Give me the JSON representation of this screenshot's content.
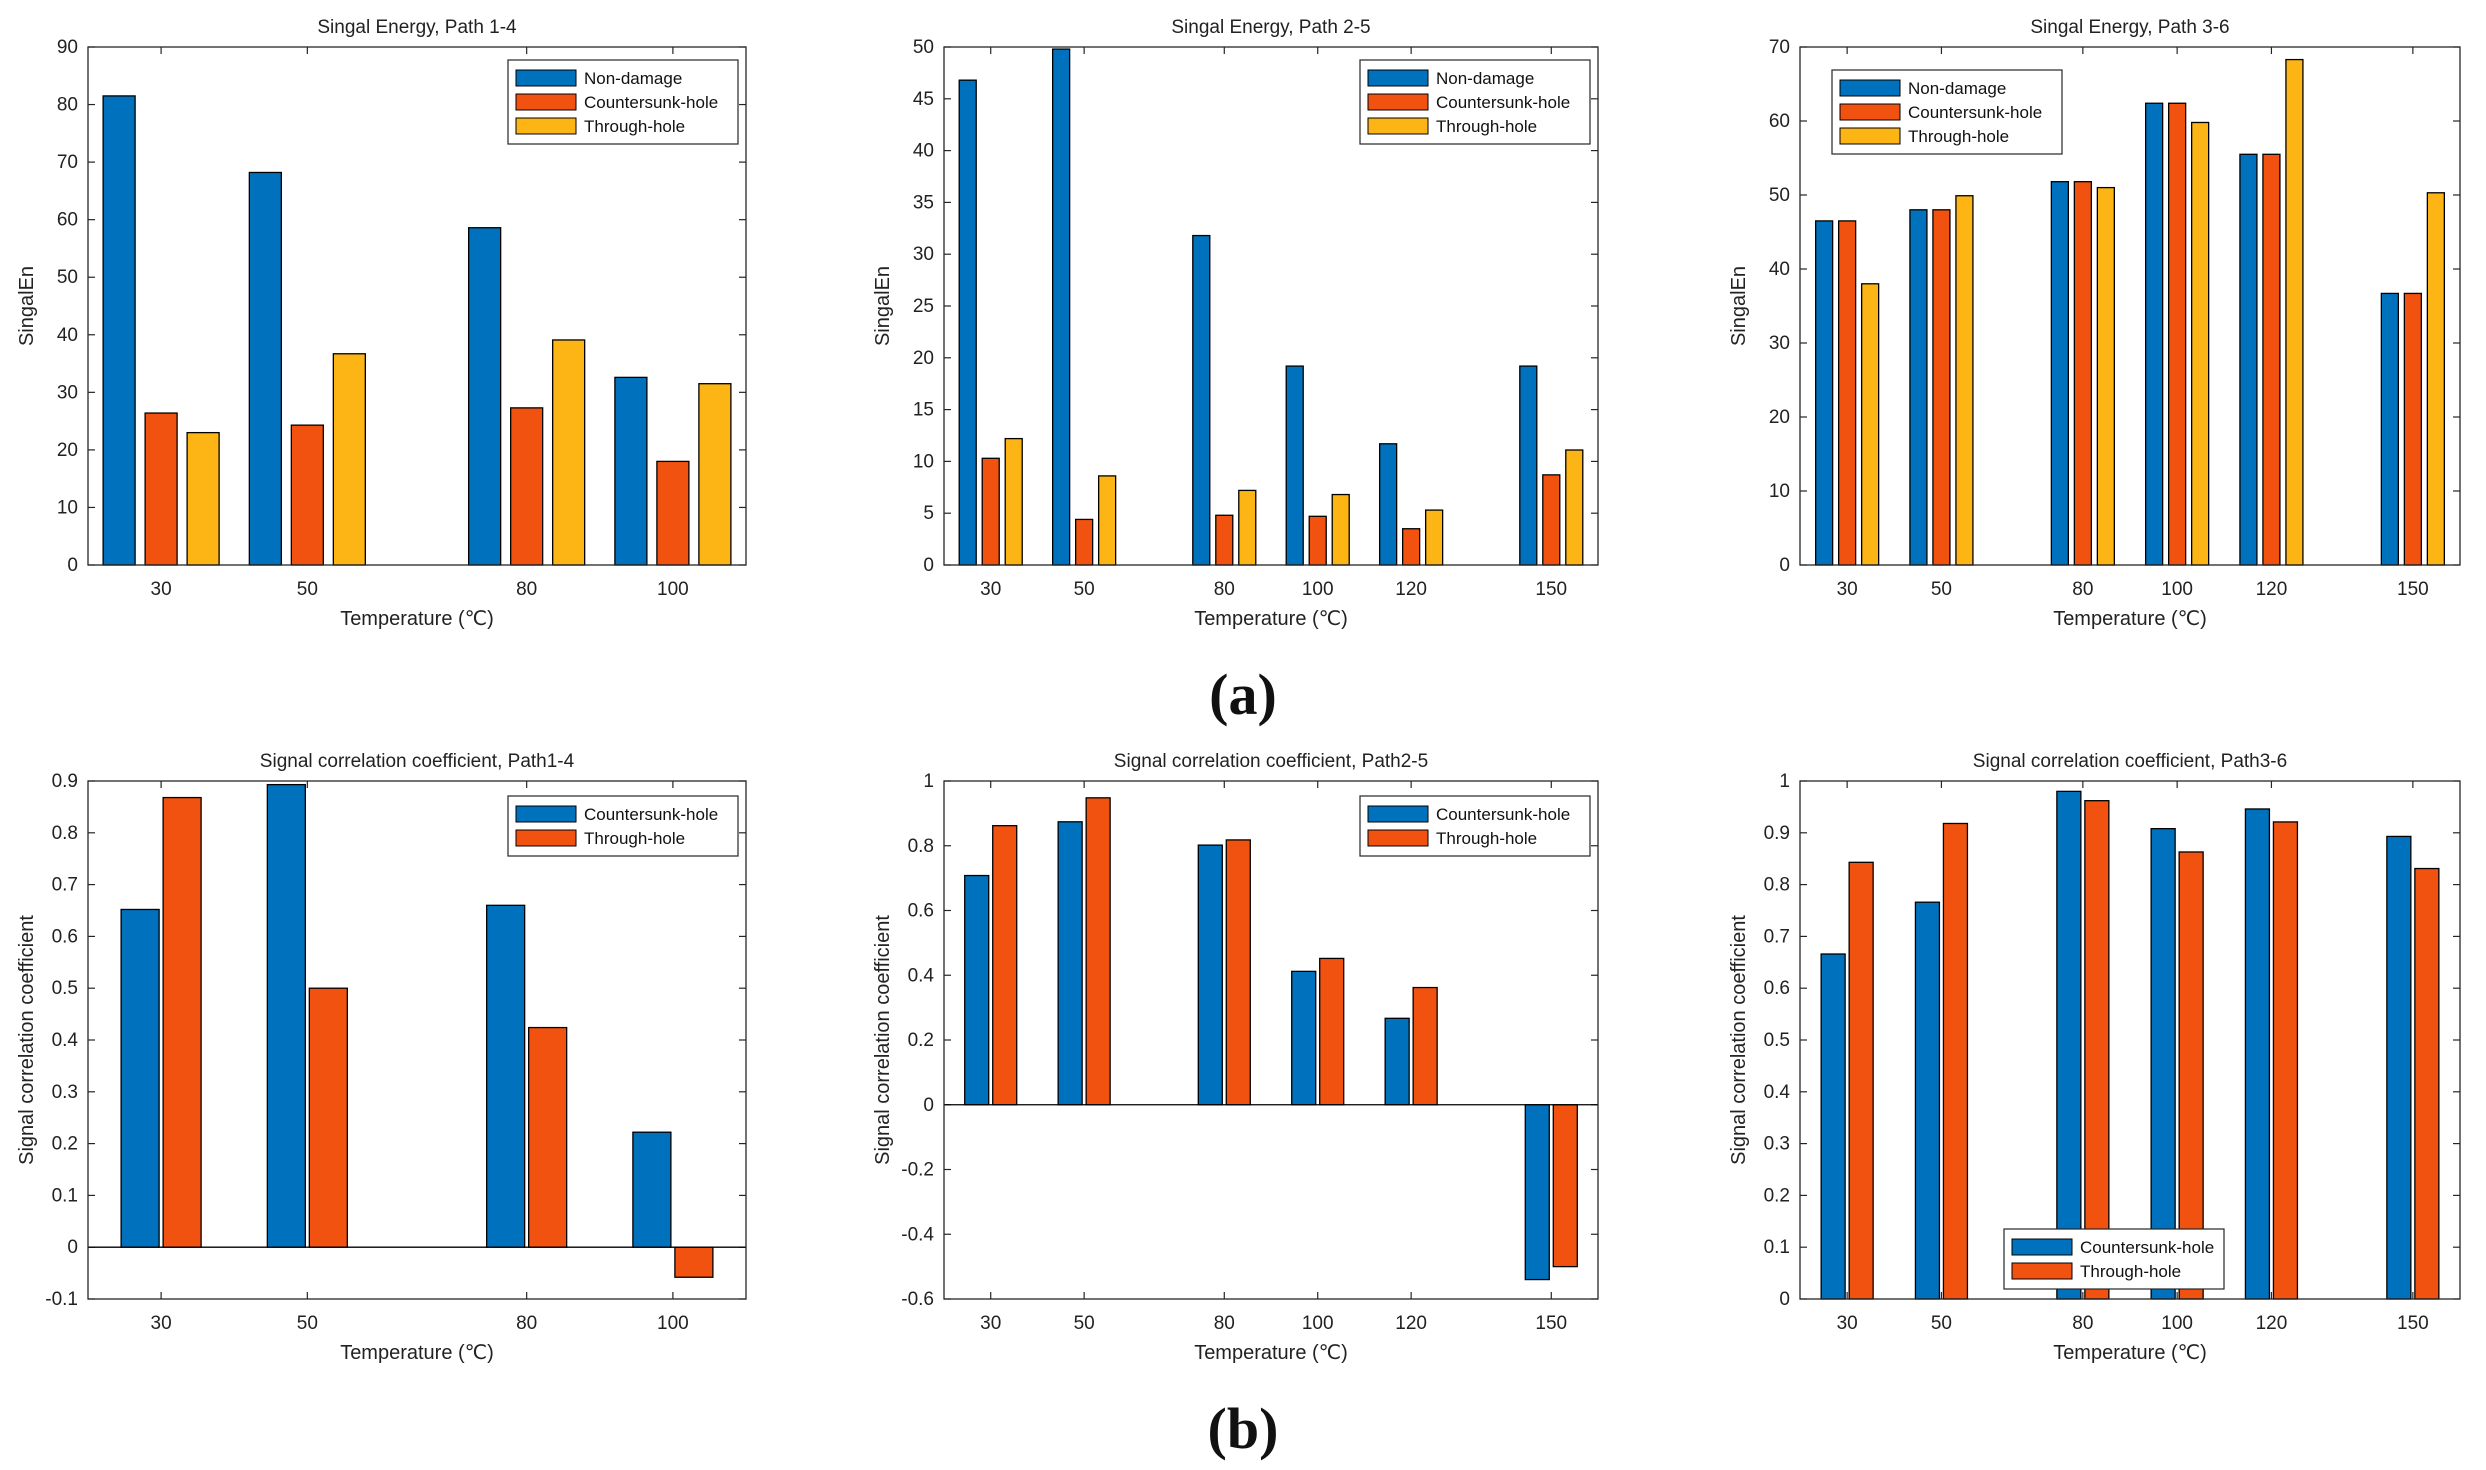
{
  "colors": {
    "non_damage": "#0072bd",
    "countersunk": "#f2520f",
    "through": "#fdb515",
    "axis": "#262626"
  },
  "panel_labels": {
    "a": "(a)",
    "b": "(b)"
  },
  "chart_data": [
    {
      "type": "bar",
      "title": "Singal Energy, Path 1-4",
      "xlabel": "Temperature (℃)",
      "ylabel": "SingalEn",
      "categories": [
        "30",
        "50",
        "80",
        "100"
      ],
      "x": [
        30,
        50,
        80,
        100
      ],
      "xlim": [
        20,
        110
      ],
      "ylim": [
        0,
        90
      ],
      "yticks": [
        0,
        10,
        20,
        30,
        40,
        50,
        60,
        70,
        80,
        90
      ],
      "legend": "top-right",
      "series": [
        {
          "name": "Non-damage",
          "color_key": "non_damage",
          "values": [
            81.5,
            68.2,
            58.6,
            32.6
          ]
        },
        {
          "name": "Countersunk-hole",
          "color_key": "countersunk",
          "values": [
            26.4,
            24.3,
            27.3,
            18.0
          ]
        },
        {
          "name": "Through-hole",
          "color_key": "through",
          "values": [
            23.0,
            36.7,
            39.1,
            31.5
          ]
        }
      ]
    },
    {
      "type": "bar",
      "title": "Singal Energy, Path 2-5",
      "xlabel": "Temperature (℃)",
      "ylabel": "SingalEn",
      "categories": [
        "30",
        "50",
        "80",
        "100",
        "120",
        "150"
      ],
      "x": [
        30,
        50,
        80,
        100,
        120,
        150
      ],
      "xlim": [
        20,
        160
      ],
      "ylim": [
        0,
        50
      ],
      "yticks": [
        0,
        5,
        10,
        15,
        20,
        25,
        30,
        35,
        40,
        45,
        50
      ],
      "legend": "top-right",
      "series": [
        {
          "name": "Non-damage",
          "color_key": "non_damage",
          "values": [
            46.8,
            49.8,
            31.8,
            19.2,
            11.7,
            19.2
          ]
        },
        {
          "name": "Countersunk-hole",
          "color_key": "countersunk",
          "values": [
            10.3,
            4.4,
            4.8,
            4.7,
            3.5,
            8.7
          ]
        },
        {
          "name": "Through-hole",
          "color_key": "through",
          "values": [
            12.2,
            8.6,
            7.2,
            6.8,
            5.3,
            11.1
          ]
        }
      ]
    },
    {
      "type": "bar",
      "title": "Singal Energy, Path 3-6",
      "xlabel": "Temperature (℃)",
      "ylabel": "SingalEn",
      "categories": [
        "30",
        "50",
        "80",
        "100",
        "120",
        "150"
      ],
      "x": [
        30,
        50,
        80,
        100,
        120,
        150
      ],
      "xlim": [
        20,
        160
      ],
      "ylim": [
        0,
        70
      ],
      "yticks": [
        0,
        10,
        20,
        30,
        40,
        50,
        60,
        70
      ],
      "legend": "top-left",
      "series": [
        {
          "name": "Non-damage",
          "color_key": "non_damage",
          "values": [
            46.5,
            48.0,
            51.8,
            62.4,
            55.5,
            36.7
          ]
        },
        {
          "name": "Countersunk-hole",
          "color_key": "countersunk",
          "values": [
            46.5,
            48.0,
            51.8,
            62.4,
            55.5,
            36.7
          ]
        },
        {
          "name": "Through-hole",
          "color_key": "through",
          "values": [
            38.0,
            49.9,
            51.0,
            59.8,
            68.3,
            50.3
          ]
        }
      ]
    },
    {
      "type": "bar",
      "title": "Signal correlation coefficient, Path1-4",
      "xlabel": "Temperature (℃)",
      "ylabel": "Signal correlation coefficient",
      "categories": [
        "30",
        "50",
        "80",
        "100"
      ],
      "x": [
        30,
        50,
        80,
        100
      ],
      "xlim": [
        20,
        110
      ],
      "ylim": [
        -0.1,
        0.9
      ],
      "yticks": [
        -0.1,
        0,
        0.1,
        0.2,
        0.3,
        0.4,
        0.5,
        0.6,
        0.7,
        0.8,
        0.9
      ],
      "legend": "top-right",
      "series": [
        {
          "name": "Countersunk-hole",
          "color_key": "non_damage",
          "values": [
            0.652,
            0.893,
            0.66,
            0.222
          ]
        },
        {
          "name": "Through-hole",
          "color_key": "countersunk",
          "values": [
            0.868,
            0.5,
            0.424,
            -0.058
          ]
        }
      ]
    },
    {
      "type": "bar",
      "title": "Signal correlation coefficient, Path2-5",
      "xlabel": "Temperature (℃)",
      "ylabel": "Signal correlation coefficient",
      "categories": [
        "30",
        "50",
        "80",
        "100",
        "120",
        "150"
      ],
      "x": [
        30,
        50,
        80,
        100,
        120,
        150
      ],
      "xlim": [
        20,
        160
      ],
      "ylim": [
        -0.6,
        1
      ],
      "yticks": [
        -0.6,
        -0.4,
        -0.2,
        0,
        0.2,
        0.4,
        0.6,
        0.8,
        1
      ],
      "legend": "top-right",
      "series": [
        {
          "name": "Countersunk-hole",
          "color_key": "non_damage",
          "values": [
            0.708,
            0.874,
            0.802,
            0.412,
            0.267,
            -0.54
          ]
        },
        {
          "name": "Through-hole",
          "color_key": "countersunk",
          "values": [
            0.862,
            0.948,
            0.818,
            0.452,
            0.362,
            -0.5
          ]
        }
      ]
    },
    {
      "type": "bar",
      "title": "Signal correlation coefficient, Path3-6",
      "xlabel": "Temperature (℃)",
      "ylabel": "Signal correlation coefficient",
      "categories": [
        "30",
        "50",
        "80",
        "100",
        "120",
        "150"
      ],
      "x": [
        30,
        50,
        80,
        100,
        120,
        150
      ],
      "xlim": [
        20,
        160
      ],
      "ylim": [
        0,
        1
      ],
      "yticks": [
        0,
        0.1,
        0.2,
        0.3,
        0.4,
        0.5,
        0.6,
        0.7,
        0.8,
        0.9,
        1
      ],
      "legend": "bottom-center",
      "series": [
        {
          "name": "Countersunk-hole",
          "color_key": "non_damage",
          "values": [
            0.666,
            0.766,
            0.98,
            0.908,
            0.946,
            0.893
          ]
        },
        {
          "name": "Through-hole",
          "color_key": "countersunk",
          "values": [
            0.843,
            0.918,
            0.962,
            0.863,
            0.921,
            0.831
          ]
        }
      ]
    }
  ]
}
